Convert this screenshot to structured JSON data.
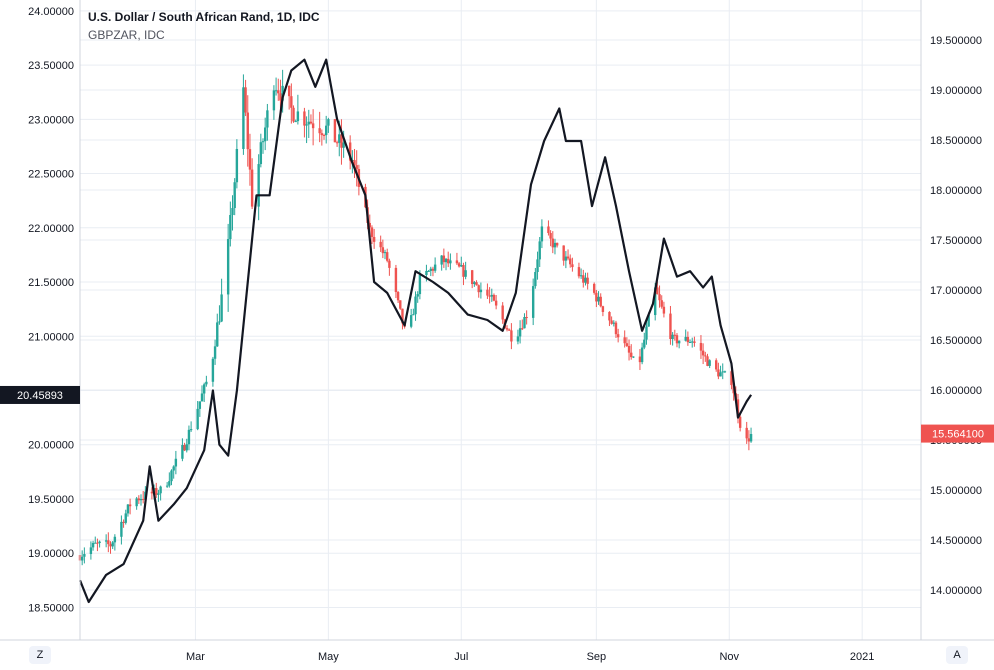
{
  "header": {
    "title": "U.S. Dollar / South African Rand, 1D, IDC",
    "overlay": "GBPZAR, IDC"
  },
  "controls": {
    "left_button": "Z",
    "right_button": "A"
  },
  "colors": {
    "up": "#26a69a",
    "down": "#ef5350",
    "line": "#131722",
    "grid": "#e9edf3",
    "axis_text": "#131722"
  },
  "chart_data": {
    "type": "candlestick+line",
    "title": "U.S. Dollar / South African Rand, 1D, IDC",
    "xlabel": "",
    "ylabel": "",
    "x_ticks": [
      "Mar",
      "May",
      "Jul",
      "Sep",
      "Nov",
      "2021"
    ],
    "x_tick_dates": [
      "2020-03-01",
      "2020-05-01",
      "2020-07-01",
      "2020-09-01",
      "2020-11-01",
      "2021-01-01"
    ],
    "x_range": [
      "2020-01-08",
      "2021-01-28"
    ],
    "left_axis": {
      "series": "GBPZAR, IDC",
      "range": [
        18.2,
        24.1
      ],
      "ticks": [
        "18.50000",
        "19.00000",
        "19.50000",
        "20.00000",
        "20.50000",
        "21.00000",
        "21.50000",
        "22.00000",
        "22.50000",
        "23.00000",
        "23.50000",
        "24.00000"
      ],
      "last_value_label": "20.45893"
    },
    "right_axis": {
      "series": "U.S. Dollar / South African Rand",
      "range": [
        13.5,
        19.9
      ],
      "ticks": [
        "14.000000",
        "14.500000",
        "15.000000",
        "15.500000",
        "16.000000",
        "16.500000",
        "17.000000",
        "17.500000",
        "18.000000",
        "18.500000",
        "19.000000",
        "19.500000"
      ],
      "last_value_label": "15.564100"
    },
    "grid": true,
    "candles": {
      "series": "U.S. Dollar / South African Rand, 1D, IDC",
      "axis": "right",
      "anchors": [
        [
          "2020-01-08",
          14.35
        ],
        [
          "2020-01-15",
          14.45
        ],
        [
          "2020-01-22",
          14.45
        ],
        [
          "2020-02-01",
          14.9
        ],
        [
          "2020-02-15",
          15.0
        ],
        [
          "2020-02-25",
          15.45
        ],
        [
          "2020-03-08",
          16.2
        ],
        [
          "2020-03-15",
          17.2
        ],
        [
          "2020-03-23",
          19.0
        ],
        [
          "2020-03-27",
          17.9
        ],
        [
          "2020-04-06",
          19.1
        ],
        [
          "2020-04-14",
          18.8
        ],
        [
          "2020-04-22",
          18.7
        ],
        [
          "2020-05-01",
          18.6
        ],
        [
          "2020-05-12",
          18.3
        ],
        [
          "2020-05-20",
          17.6
        ],
        [
          "2020-05-28",
          17.3
        ],
        [
          "2020-06-06",
          16.5
        ],
        [
          "2020-06-12",
          17.1
        ],
        [
          "2020-06-22",
          17.3
        ],
        [
          "2020-07-01",
          17.2
        ],
        [
          "2020-07-15",
          16.9
        ],
        [
          "2020-07-25",
          16.5
        ],
        [
          "2020-08-01",
          16.8
        ],
        [
          "2020-08-07",
          17.6
        ],
        [
          "2020-08-18",
          17.3
        ],
        [
          "2020-08-30",
          17.0
        ],
        [
          "2020-09-10",
          16.6
        ],
        [
          "2020-09-20",
          16.2
        ],
        [
          "2020-09-28",
          17.0
        ],
        [
          "2020-10-06",
          16.5
        ],
        [
          "2020-10-15",
          16.5
        ],
        [
          "2020-10-25",
          16.2
        ],
        [
          "2020-11-02",
          16.1
        ],
        [
          "2020-11-08",
          15.45
        ],
        [
          "2020-11-11",
          15.56
        ]
      ]
    },
    "line": {
      "series": "GBPZAR, IDC",
      "axis": "left",
      "points": [
        [
          "2020-01-08",
          18.75
        ],
        [
          "2020-01-12",
          18.55
        ],
        [
          "2020-01-20",
          18.8
        ],
        [
          "2020-01-28",
          18.9
        ],
        [
          "2020-02-06",
          19.3
        ],
        [
          "2020-02-09",
          19.8
        ],
        [
          "2020-02-13",
          19.3
        ],
        [
          "2020-02-20",
          19.45
        ],
        [
          "2020-02-26",
          19.6
        ],
        [
          "2020-03-05",
          19.95
        ],
        [
          "2020-03-09",
          20.5
        ],
        [
          "2020-03-12",
          20.0
        ],
        [
          "2020-03-16",
          19.9
        ],
        [
          "2020-03-20",
          20.5
        ],
        [
          "2020-03-24",
          21.3
        ],
        [
          "2020-03-29",
          22.3
        ],
        [
          "2020-04-04",
          22.3
        ],
        [
          "2020-04-10",
          23.2
        ],
        [
          "2020-04-14",
          23.45
        ],
        [
          "2020-04-20",
          23.55
        ],
        [
          "2020-04-25",
          23.3
        ],
        [
          "2020-04-30",
          23.55
        ],
        [
          "2020-05-05",
          23.0
        ],
        [
          "2020-05-12",
          22.6
        ],
        [
          "2020-05-18",
          22.3
        ],
        [
          "2020-05-22",
          21.5
        ],
        [
          "2020-05-28",
          21.4
        ],
        [
          "2020-06-05",
          21.1
        ],
        [
          "2020-06-10",
          21.6
        ],
        [
          "2020-06-18",
          21.5
        ],
        [
          "2020-06-25",
          21.4
        ],
        [
          "2020-07-04",
          21.2
        ],
        [
          "2020-07-13",
          21.15
        ],
        [
          "2020-07-20",
          21.05
        ],
        [
          "2020-07-26",
          21.4
        ],
        [
          "2020-08-02",
          22.4
        ],
        [
          "2020-08-08",
          22.8
        ],
        [
          "2020-08-15",
          23.1
        ],
        [
          "2020-08-18",
          22.8
        ],
        [
          "2020-08-25",
          22.8
        ],
        [
          "2020-08-30",
          22.2
        ],
        [
          "2020-09-05",
          22.65
        ],
        [
          "2020-09-10",
          22.2
        ],
        [
          "2020-09-16",
          21.6
        ],
        [
          "2020-09-22",
          21.05
        ],
        [
          "2020-09-27",
          21.3
        ],
        [
          "2020-10-02",
          21.9
        ],
        [
          "2020-10-08",
          21.55
        ],
        [
          "2020-10-14",
          21.6
        ],
        [
          "2020-10-20",
          21.45
        ],
        [
          "2020-10-24",
          21.55
        ],
        [
          "2020-10-28",
          21.1
        ],
        [
          "2020-11-02",
          20.75
        ],
        [
          "2020-11-05",
          20.25
        ],
        [
          "2020-11-09",
          20.4
        ],
        [
          "2020-11-11",
          20.46
        ]
      ]
    }
  }
}
